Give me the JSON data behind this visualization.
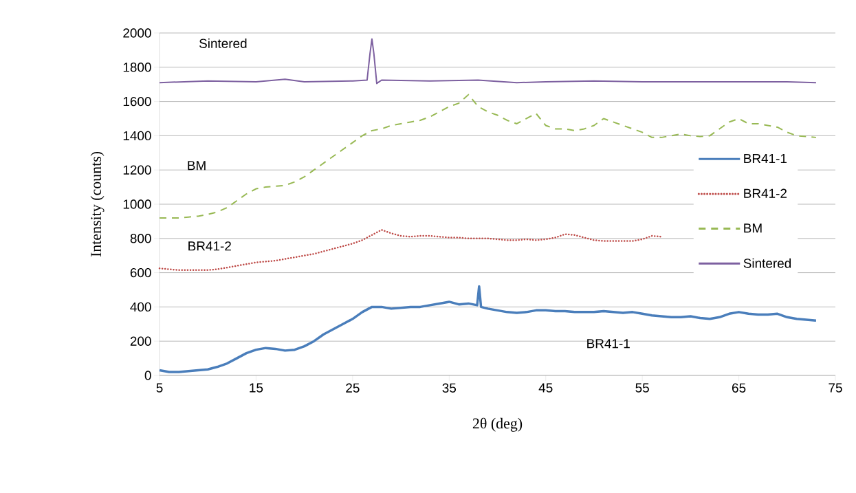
{
  "chart_data": {
    "type": "line",
    "xlabel": "2θ (deg)",
    "ylabel": "Intensity (counts)",
    "xlim": [
      5,
      75
    ],
    "ylim": [
      0,
      2000
    ],
    "xticks": [
      5,
      15,
      25,
      35,
      45,
      55,
      65,
      75
    ],
    "yticks": [
      0,
      200,
      400,
      600,
      800,
      1000,
      1200,
      1400,
      1600,
      1800,
      2000
    ],
    "grid": "y",
    "legend": "right",
    "marker": "none",
    "annotations": [
      "Sintered",
      "BM",
      "BR41-2",
      "BR41-1"
    ],
    "series": [
      {
        "name": "BR41-1",
        "color": "#4a7ebb",
        "line_style": "solid",
        "x": [
          5,
          6,
          7,
          8,
          9,
          10,
          11,
          12,
          13,
          14,
          15,
          16,
          17,
          18,
          19,
          20,
          21,
          22,
          23,
          24,
          25,
          26,
          27,
          28,
          29,
          30,
          31,
          32,
          33,
          34,
          35,
          36,
          37,
          37.9,
          38.1,
          38.3,
          39,
          40,
          41,
          42,
          43,
          44,
          45,
          46,
          47,
          48,
          49,
          50,
          51,
          52,
          53,
          54,
          55,
          56,
          57,
          58,
          59,
          60,
          61,
          62,
          63,
          64,
          65,
          66,
          67,
          68,
          69,
          70,
          71,
          72,
          73
        ],
        "values": [
          30,
          20,
          20,
          25,
          30,
          35,
          50,
          70,
          100,
          130,
          150,
          160,
          155,
          145,
          150,
          170,
          200,
          240,
          270,
          300,
          330,
          370,
          400,
          400,
          390,
          395,
          400,
          400,
          410,
          420,
          430,
          415,
          420,
          410,
          520,
          400,
          390,
          380,
          370,
          365,
          370,
          380,
          380,
          375,
          375,
          370,
          370,
          370,
          375,
          370,
          365,
          370,
          360,
          350,
          345,
          340,
          340,
          345,
          335,
          330,
          340,
          360,
          370,
          360,
          355,
          355,
          360,
          340,
          330,
          325,
          320
        ]
      },
      {
        "name": "BR41-2",
        "color": "#be4b48",
        "line_style": "dotted",
        "x": [
          5,
          6,
          7,
          8,
          9,
          10,
          11,
          12,
          13,
          14,
          15,
          16,
          17,
          18,
          19,
          20,
          21,
          22,
          23,
          24,
          25,
          26,
          27,
          28,
          29,
          30,
          31,
          32,
          33,
          34,
          35,
          36,
          37,
          38,
          39,
          40,
          41,
          42,
          43,
          44,
          45,
          46,
          47,
          48,
          49,
          50,
          51,
          52,
          53,
          54,
          55,
          56,
          57
        ],
        "values": [
          625,
          620,
          615,
          615,
          615,
          615,
          620,
          630,
          640,
          650,
          660,
          665,
          670,
          680,
          690,
          700,
          710,
          725,
          740,
          755,
          770,
          790,
          820,
          850,
          830,
          815,
          810,
          815,
          815,
          810,
          805,
          805,
          800,
          800,
          800,
          795,
          790,
          790,
          795,
          790,
          795,
          805,
          825,
          820,
          805,
          790,
          785,
          785,
          785,
          785,
          795,
          815,
          810
        ]
      },
      {
        "name": "BM",
        "color": "#98b954",
        "line_style": "dashed",
        "x": [
          5,
          6,
          7,
          8,
          9,
          10,
          11,
          12,
          13,
          14,
          15,
          16,
          17,
          18,
          19,
          20,
          21,
          22,
          23,
          24,
          25,
          26,
          27,
          28,
          29,
          30,
          31,
          32,
          33,
          34,
          35,
          36,
          37,
          38,
          39,
          40,
          41,
          42,
          43,
          44,
          45,
          46,
          47,
          48,
          49,
          50,
          51,
          52,
          53,
          54,
          55,
          56,
          57,
          58,
          59,
          60,
          61,
          62,
          63,
          64,
          65,
          66,
          67,
          68,
          69,
          70,
          71,
          72,
          73
        ],
        "values": [
          920,
          920,
          920,
          925,
          930,
          940,
          955,
          980,
          1020,
          1060,
          1090,
          1100,
          1105,
          1110,
          1130,
          1160,
          1200,
          1240,
          1280,
          1320,
          1360,
          1400,
          1430,
          1440,
          1460,
          1470,
          1480,
          1490,
          1510,
          1540,
          1570,
          1590,
          1640,
          1570,
          1540,
          1520,
          1490,
          1470,
          1500,
          1530,
          1460,
          1440,
          1440,
          1430,
          1440,
          1460,
          1500,
          1480,
          1460,
          1440,
          1420,
          1390,
          1390,
          1400,
          1410,
          1400,
          1395,
          1400,
          1440,
          1480,
          1500,
          1470,
          1470,
          1460,
          1450,
          1420,
          1400,
          1395,
          1390
        ]
      },
      {
        "name": "Sintered",
        "color": "#7d60a0",
        "line_style": "solid",
        "x": [
          5,
          10,
          15,
          18,
          20,
          25,
          26.5,
          26.8,
          27,
          27.2,
          27.5,
          28,
          33,
          38,
          42,
          45,
          50,
          55,
          60,
          65,
          70,
          73
        ],
        "values": [
          1710,
          1720,
          1715,
          1730,
          1715,
          1720,
          1725,
          1880,
          1965,
          1880,
          1705,
          1725,
          1720,
          1725,
          1710,
          1715,
          1720,
          1715,
          1715,
          1715,
          1715,
          1710
        ]
      }
    ]
  }
}
